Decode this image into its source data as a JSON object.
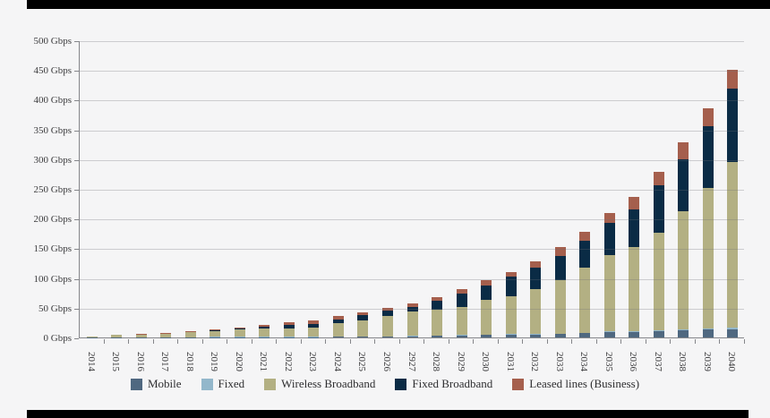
{
  "page": {
    "background": "#f5f5f6",
    "top_bar_color": "#000000",
    "bottom_bar_color": "#000000"
  },
  "chart_data": {
    "type": "bar",
    "stacked": true,
    "title": "",
    "xlabel": "",
    "ylabel": "",
    "unit": "Gbps",
    "grid": true,
    "legend_position": "bottom",
    "ylim": [
      0,
      500
    ],
    "y_ticks_top_down": [
      "500 Gbps",
      "450 Gbps",
      "400 Gbps",
      "350 Gbps",
      "300 Gbps",
      "250 Gbps",
      "200 Gbps",
      "150 Gbps",
      "100 Gbps",
      "50 Gbps",
      "0 Gbps"
    ],
    "categories": [
      "2014",
      "2015",
      "2016",
      "2017",
      "2018",
      "2019",
      "2020",
      "2021",
      "2022",
      "2023",
      "2024",
      "2025",
      "2026",
      "2927",
      "2028",
      "2029",
      "2030",
      "2031",
      "2032",
      "2033",
      "2034",
      "2035",
      "2036",
      "2037",
      "2038",
      "2039",
      "2040"
    ],
    "series": [
      {
        "name": "Mobile",
        "color": "#4f6880",
        "values": [
          0.2,
          0.3,
          0.3,
          0.4,
          0.4,
          0.5,
          0.5,
          0.6,
          0.6,
          0.6,
          0.8,
          1.2,
          1.6,
          2.0,
          2.5,
          3.7,
          4.0,
          4.5,
          5.0,
          5.5,
          7.0,
          9.5,
          9.5,
          10.5,
          12.0,
          13.0,
          14.0
        ]
      },
      {
        "name": "Fixed",
        "color": "#93b7cb",
        "values": [
          0.1,
          0.2,
          0.2,
          0.2,
          0.3,
          0.3,
          0.3,
          0.4,
          0.4,
          0.4,
          0.4,
          0.5,
          0.6,
          0.5,
          0.5,
          0.8,
          1.0,
          1.0,
          1.0,
          1.0,
          1.0,
          1.5,
          1.5,
          1.5,
          2.0,
          2.5,
          3.0
        ]
      },
      {
        "name": "Wireless Broadband",
        "color": "#b3b083",
        "values": [
          0.6,
          3.5,
          4.2,
          5.4,
          7.8,
          9.7,
          12.7,
          14.5,
          14.0,
          15.5,
          22.3,
          26.8,
          33.8,
          40.5,
          43.5,
          46.5,
          58.0,
          64.0,
          76.0,
          90.0,
          109.0,
          128.0,
          141.0,
          165.0,
          199.0,
          236.5,
          278.0
        ]
      },
      {
        "name": "Fixed Broadband",
        "color": "#0a2b45",
        "values": [
          0.2,
          0.5,
          0.6,
          0.7,
          1.3,
          1.6,
          1.8,
          2.8,
          5.5,
          6.5,
          7.0,
          8.5,
          8.5,
          9.0,
          15.0,
          23.5,
          24.0,
          33.0,
          36.0,
          40.5,
          46.0,
          54.5,
          64.0,
          79.0,
          87.5,
          103.0,
          123.0
        ]
      },
      {
        "name": "Leased lines (Business)",
        "color": "#a55f4d",
        "values": [
          0.2,
          0.5,
          0.7,
          0.8,
          1.2,
          1.4,
          1.7,
          2.2,
          4.5,
          5.5,
          6.0,
          6.0,
          5.5,
          6.0,
          6.5,
          6.5,
          9.0,
          8.0,
          10.0,
          15.0,
          15.0,
          16.5,
          21.0,
          23.0,
          27.5,
          30.0,
          32.0
        ]
      }
    ]
  }
}
